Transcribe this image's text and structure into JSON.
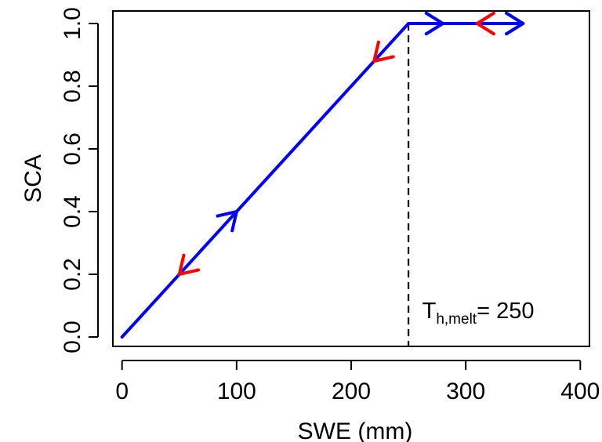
{
  "chart_data": {
    "type": "line",
    "title": "",
    "xlabel": "SWE (mm)",
    "ylabel": "SCA",
    "xlim": [
      -8,
      408
    ],
    "ylim": [
      -0.03,
      1.04
    ],
    "xticks": [
      0,
      100,
      200,
      300,
      400
    ],
    "xtick_labels": [
      "0",
      "100",
      "200",
      "300",
      "400"
    ],
    "yticks": [
      0.0,
      0.2,
      0.4,
      0.6,
      0.8,
      1.0
    ],
    "ytick_labels": [
      "0.0",
      "0.2",
      "0.4",
      "0.6",
      "0.8",
      "1.0"
    ],
    "grid": false,
    "series": [
      {
        "color": "#0000ff",
        "x": [
          0,
          250,
          350
        ],
        "y": [
          0.0,
          1.0,
          1.0
        ]
      }
    ],
    "arrows": [
      {
        "x": 100,
        "y": 0.4,
        "direction": "up-right",
        "color": "#0000ff"
      },
      {
        "x": 280,
        "y": 1.0,
        "direction": "right",
        "color": "#0000ff"
      },
      {
        "x": 350,
        "y": 1.0,
        "direction": "right",
        "color": "#0000ff"
      },
      {
        "x": 50,
        "y": 0.2,
        "direction": "down-left",
        "color": "#ff0000"
      },
      {
        "x": 220,
        "y": 0.88,
        "direction": "down-left",
        "color": "#ff0000"
      },
      {
        "x": 310,
        "y": 1.0,
        "direction": "left",
        "color": "#ff0000"
      }
    ],
    "vline": {
      "x": 250,
      "style": "dashed",
      "color": "#000000"
    },
    "annotation": {
      "main": "T",
      "subscript": "h,melt",
      "suffix": "= 250",
      "x": 262,
      "y": 0.06
    }
  }
}
